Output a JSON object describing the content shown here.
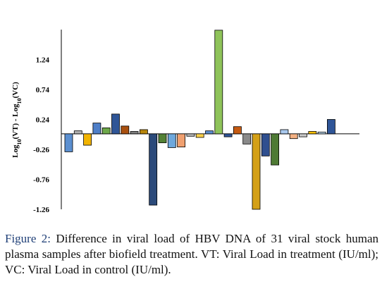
{
  "chart_data": {
    "type": "bar",
    "ylabel_parts": [
      "Log",
      "10",
      "(VT) - Log",
      "10",
      "(VC)"
    ],
    "yticks": [
      "1.24",
      "0.74",
      "0.24",
      "-0.26",
      "-0.76",
      "-1.26"
    ],
    "ylim": [
      -1.26,
      1.74
    ],
    "grid": false,
    "legend": "none",
    "values": [
      -0.3,
      0.05,
      -0.19,
      0.18,
      0.1,
      0.33,
      0.13,
      0.04,
      0.07,
      -1.19,
      -0.15,
      -0.23,
      -0.22,
      -0.04,
      -0.06,
      0.05,
      1.73,
      -0.05,
      0.12,
      -0.17,
      -1.26,
      -0.37,
      -0.52,
      0.07,
      -0.08,
      -0.05,
      0.04,
      0.03,
      0.24
    ],
    "colors": [
      "#5b8fd0",
      "#b0b0b0",
      "#f2b400",
      "#4f7fc8",
      "#6ea84a",
      "#2f5597",
      "#a9500f",
      "#7f7f7f",
      "#b8860b",
      "#2b4a7a",
      "#538135",
      "#6ea8dc",
      "#f0a070",
      "#b7b7b7",
      "#ffd24a",
      "#5a8ed0",
      "#8fc35a",
      "#2f5597",
      "#c55a11",
      "#8a8a8a",
      "#d4a017",
      "#2f4f8f",
      "#4e7a34",
      "#a9c9ee",
      "#f4b183",
      "#c9c9c9",
      "#ffc000",
      "#bdd7ee",
      "#2f5597"
    ]
  },
  "caption": {
    "label": "Figure 2:",
    "text": " Difference in viral load of HBV DNA of 31 viral stock human plasma samples after biofield treatment. VT: Viral Load in treatment (IU/ml); VC: Viral Load in control (IU/ml)."
  }
}
